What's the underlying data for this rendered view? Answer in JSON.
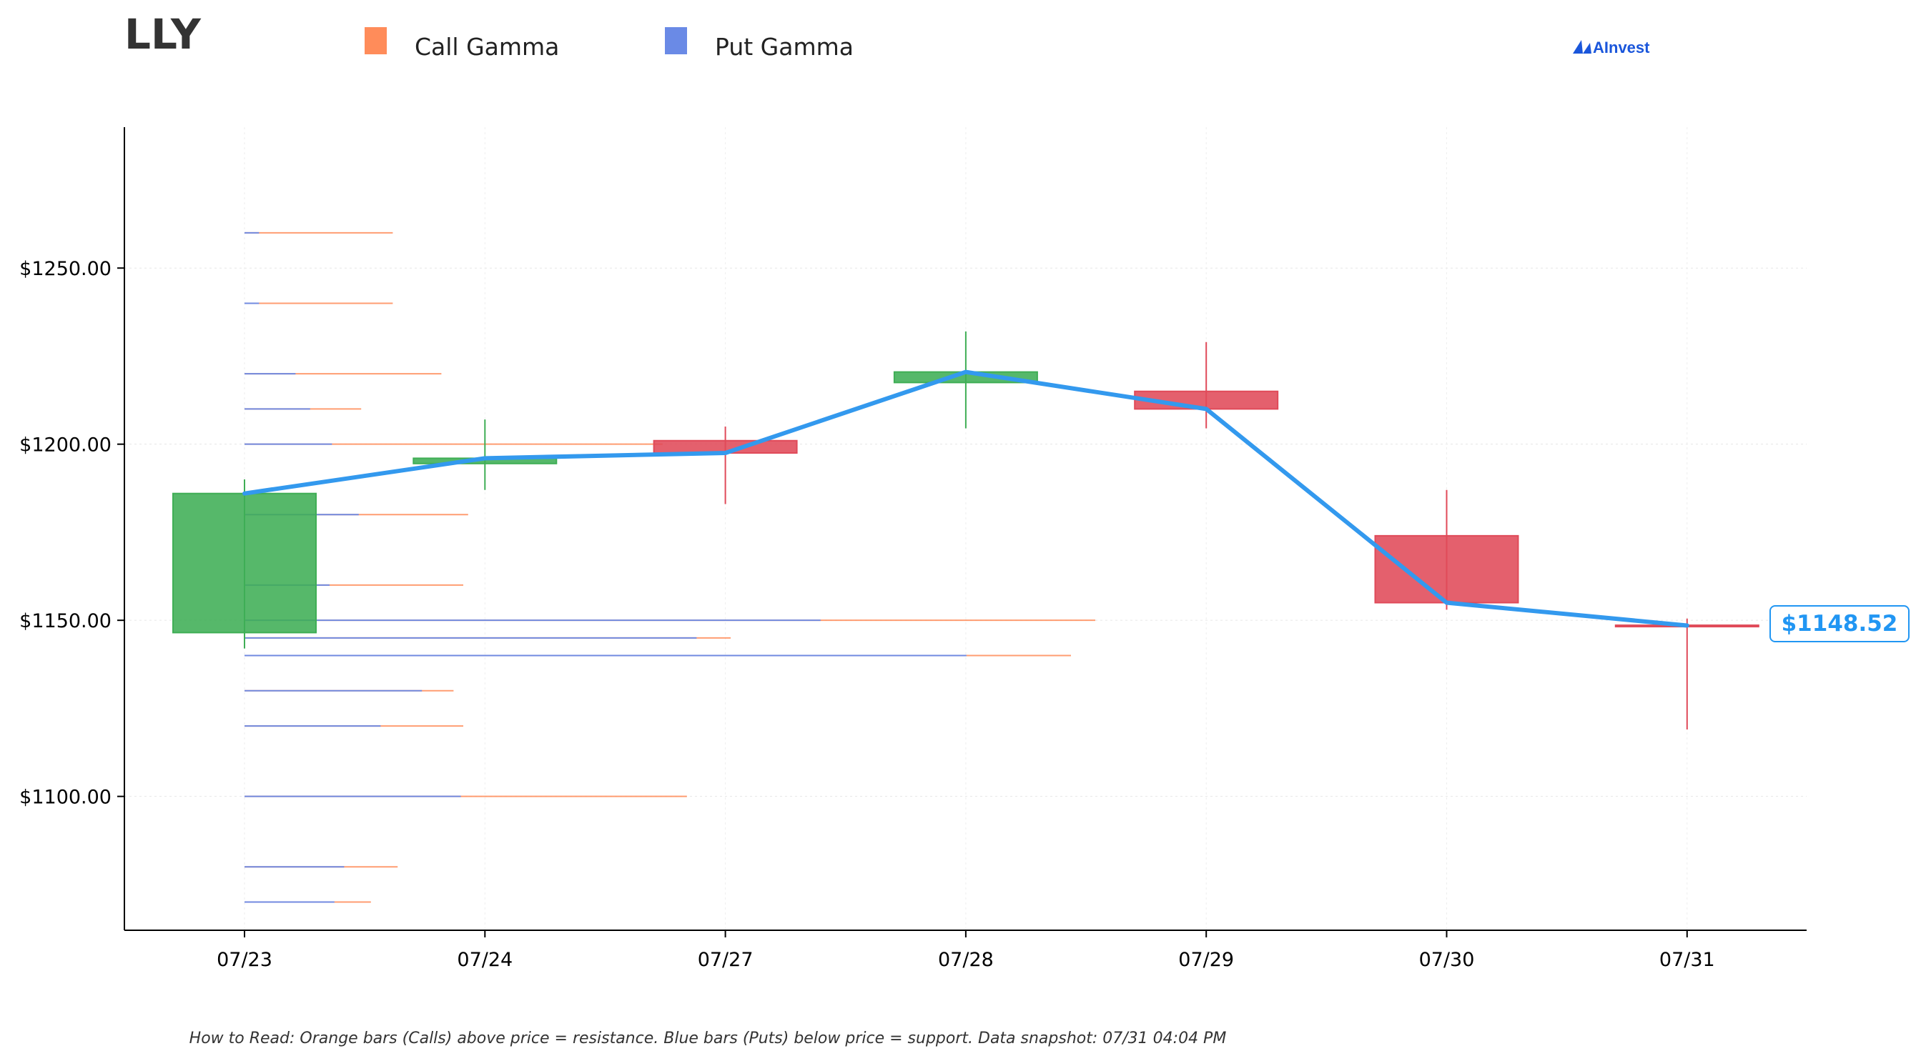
{
  "chart_data": {
    "type": "candlestick",
    "title": "LLY",
    "legend": [
      {
        "name": "Call Gamma",
        "color": "#ff8c5a"
      },
      {
        "name": "Put Gamma",
        "color": "#6a8ae6"
      }
    ],
    "legend_placement": "top",
    "brand": "AInvest",
    "categories": [
      "07/23",
      "07/24",
      "07/27",
      "07/28",
      "07/29",
      "07/30",
      "07/31"
    ],
    "ylim": [
      1062,
      1290
    ],
    "yticks": [
      1100,
      1150,
      1200,
      1250
    ],
    "ytick_labels": [
      "$1100.00",
      "$1150.00",
      "$1200.00",
      "$1250.00"
    ],
    "grid": true,
    "candles": [
      {
        "date": "07/23",
        "open": 1146.5,
        "high": 1190,
        "low": 1142,
        "close": 1186
      },
      {
        "date": "07/24",
        "open": 1194.5,
        "high": 1207,
        "low": 1187,
        "close": 1196
      },
      {
        "date": "07/27",
        "open": 1201,
        "high": 1205,
        "low": 1183,
        "close": 1197.5
      },
      {
        "date": "07/28",
        "open": 1217.5,
        "high": 1232,
        "low": 1204.5,
        "close": 1220.5
      },
      {
        "date": "07/29",
        "open": 1215,
        "high": 1229,
        "low": 1204.5,
        "close": 1210
      },
      {
        "date": "07/30",
        "open": 1174,
        "high": 1187,
        "low": 1153,
        "close": 1155
      },
      {
        "date": "07/31",
        "open": 1148.6,
        "high": 1150.5,
        "low": 1119,
        "close": 1148.5
      }
    ],
    "close_line": [
      1186,
      1196,
      1197.5,
      1220.5,
      1210,
      1155,
      1148.52
    ],
    "last_price_label": "$1148.52",
    "gamma_levels": [
      {
        "strike": 1260,
        "put": 0.06,
        "call": 0.61
      },
      {
        "strike": 1240,
        "put": 0.06,
        "call": 0.61
      },
      {
        "strike": 1220,
        "put": 0.21,
        "call": 0.81
      },
      {
        "strike": 1210,
        "put": 0.27,
        "call": 0.48
      },
      {
        "strike": 1200,
        "put": 0.36,
        "call": 1.72
      },
      {
        "strike": 1180,
        "put": 0.47,
        "call": 0.92
      },
      {
        "strike": 1160,
        "put": 0.35,
        "call": 0.9
      },
      {
        "strike": 1150,
        "put": 2.37,
        "call": 3.5
      },
      {
        "strike": 1145,
        "put": 1.86,
        "call": 2.0
      },
      {
        "strike": 1140,
        "put": 2.97,
        "call": 3.4
      },
      {
        "strike": 1130,
        "put": 0.73,
        "call": 0.86
      },
      {
        "strike": 1120,
        "put": 0.56,
        "call": 0.9
      },
      {
        "strike": 1100,
        "put": 0.89,
        "call": 1.82
      },
      {
        "strike": 1080,
        "put": 0.41,
        "call": 0.63
      },
      {
        "strike": 1070,
        "put": 0.37,
        "call": 0.52
      }
    ],
    "colors": {
      "up": "#3fae55",
      "down": "#e04a59",
      "call": "#ff8c5a",
      "put": "#6a8ae6",
      "close_line": "#3399ee",
      "last_label": "#2196f3"
    }
  },
  "footer": "How to Read: Orange bars (Calls) above price = resistance. Blue bars (Puts) below price = support. Data snapshot: 07/31 04:04 PM"
}
